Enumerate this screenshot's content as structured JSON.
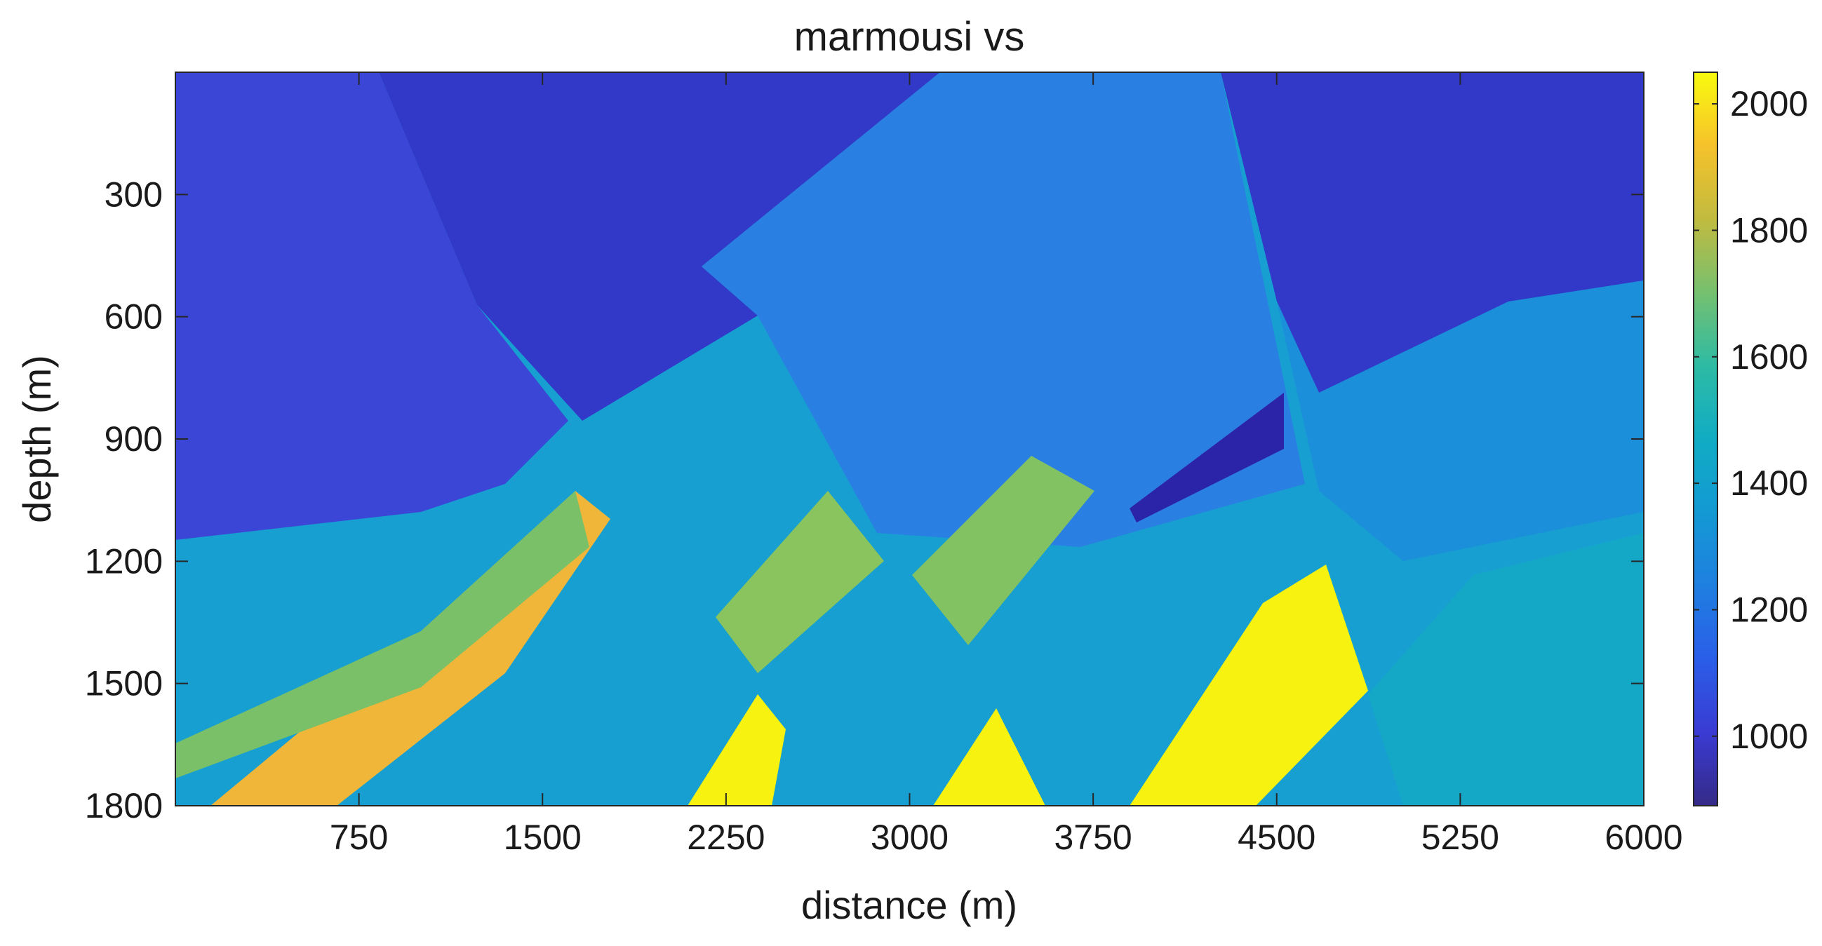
{
  "chart_data": {
    "type": "heatmap",
    "title": "marmousi vs",
    "xlabel": "distance (m)",
    "ylabel": "depth (m)",
    "xlim": [
      0,
      6000
    ],
    "ylim": [
      1800,
      0
    ],
    "x_ticks": [
      750,
      1500,
      2250,
      3000,
      3750,
      4500,
      5250,
      6000
    ],
    "y_ticks": [
      300,
      600,
      900,
      1200,
      1500,
      1800
    ],
    "colorbar": {
      "colormap": "parula",
      "range": [
        890,
        2050
      ],
      "ticks": [
        1000,
        1200,
        1400,
        1600,
        1800,
        2000
      ]
    },
    "grid": false,
    "regions": [
      {
        "name": "background",
        "value": 1330
      },
      {
        "name": "shallow-left-block",
        "value": 1050
      },
      {
        "name": "shallow-center-block",
        "value": 1030
      },
      {
        "name": "right-upper-block",
        "value": 1020
      },
      {
        "name": "right-low-velocity-lens",
        "value": 910
      },
      {
        "name": "deep-left-fast-layer",
        "value": 1900
      },
      {
        "name": "deep-center-fast-layer",
        "value": 2030
      },
      {
        "name": "deep-right-fast-layer",
        "value": 2030
      },
      {
        "name": "mid-right-fast-layer",
        "value": 2040
      }
    ]
  }
}
